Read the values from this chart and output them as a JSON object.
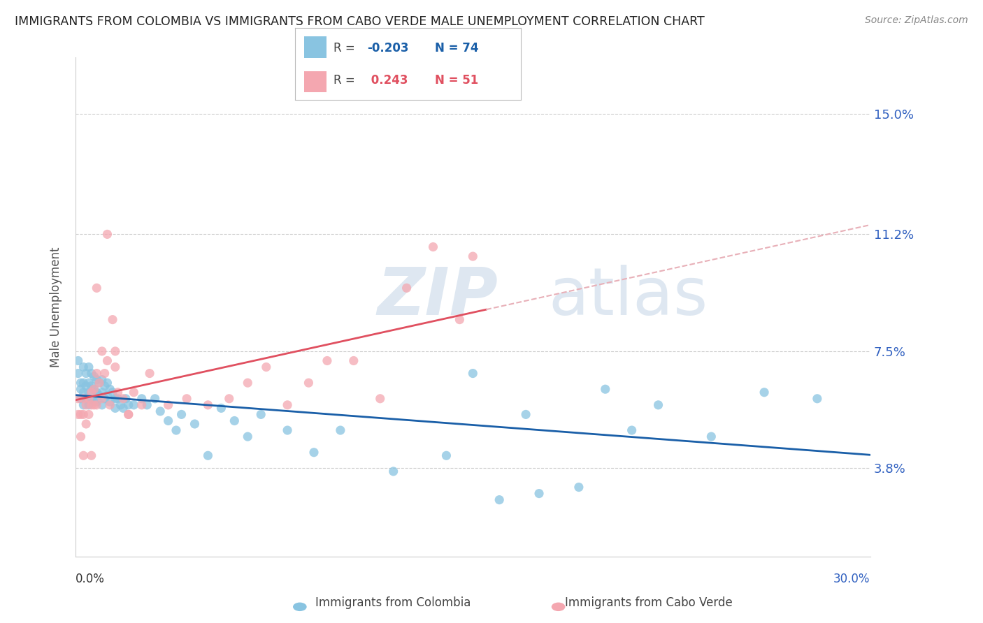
{
  "title": "IMMIGRANTS FROM COLOMBIA VS IMMIGRANTS FROM CABO VERDE MALE UNEMPLOYMENT CORRELATION CHART",
  "source": "Source: ZipAtlas.com",
  "ylabel": "Male Unemployment",
  "ytick_labels": [
    "3.8%",
    "7.5%",
    "11.2%",
    "15.0%"
  ],
  "ytick_values": [
    0.038,
    0.075,
    0.112,
    0.15
  ],
  "xlim": [
    0.0,
    0.3
  ],
  "ylim": [
    0.01,
    0.168
  ],
  "colombia_color": "#89c4e1",
  "caboverde_color": "#f4a7b0",
  "trendline_colombia_color": "#1a5fa8",
  "trendline_caboverde_color": "#e05060",
  "trendline_caboverde_dashed_color": "#e8b0b8",
  "colombia_x": [
    0.001,
    0.001,
    0.002,
    0.002,
    0.002,
    0.003,
    0.003,
    0.003,
    0.003,
    0.004,
    0.004,
    0.004,
    0.005,
    0.005,
    0.005,
    0.005,
    0.006,
    0.006,
    0.006,
    0.007,
    0.007,
    0.007,
    0.008,
    0.008,
    0.008,
    0.009,
    0.009,
    0.01,
    0.01,
    0.01,
    0.011,
    0.011,
    0.012,
    0.012,
    0.013,
    0.013,
    0.014,
    0.015,
    0.015,
    0.016,
    0.017,
    0.018,
    0.019,
    0.02,
    0.022,
    0.025,
    0.027,
    0.03,
    0.032,
    0.035,
    0.038,
    0.04,
    0.045,
    0.05,
    0.055,
    0.06,
    0.065,
    0.07,
    0.08,
    0.09,
    0.1,
    0.12,
    0.14,
    0.16,
    0.175,
    0.19,
    0.21,
    0.24,
    0.26,
    0.28,
    0.15,
    0.17,
    0.2,
    0.22
  ],
  "colombia_y": [
    0.072,
    0.068,
    0.065,
    0.063,
    0.06,
    0.07,
    0.065,
    0.062,
    0.058,
    0.068,
    0.064,
    0.06,
    0.07,
    0.065,
    0.062,
    0.058,
    0.068,
    0.064,
    0.06,
    0.067,
    0.063,
    0.059,
    0.066,
    0.062,
    0.059,
    0.065,
    0.061,
    0.066,
    0.062,
    0.058,
    0.064,
    0.06,
    0.065,
    0.061,
    0.063,
    0.059,
    0.062,
    0.06,
    0.057,
    0.06,
    0.058,
    0.057,
    0.06,
    0.058,
    0.058,
    0.06,
    0.058,
    0.06,
    0.056,
    0.053,
    0.05,
    0.055,
    0.052,
    0.042,
    0.057,
    0.053,
    0.048,
    0.055,
    0.05,
    0.043,
    0.05,
    0.037,
    0.042,
    0.028,
    0.03,
    0.032,
    0.05,
    0.048,
    0.062,
    0.06,
    0.068,
    0.055,
    0.063,
    0.058
  ],
  "caboverde_x": [
    0.001,
    0.001,
    0.002,
    0.002,
    0.003,
    0.003,
    0.003,
    0.004,
    0.004,
    0.005,
    0.005,
    0.006,
    0.006,
    0.006,
    0.007,
    0.007,
    0.008,
    0.008,
    0.009,
    0.01,
    0.01,
    0.011,
    0.012,
    0.013,
    0.014,
    0.015,
    0.016,
    0.018,
    0.02,
    0.022,
    0.025,
    0.028,
    0.035,
    0.042,
    0.05,
    0.058,
    0.065,
    0.072,
    0.08,
    0.088,
    0.095,
    0.105,
    0.115,
    0.125,
    0.135,
    0.145,
    0.15,
    0.008,
    0.012,
    0.015,
    0.02
  ],
  "caboverde_y": [
    0.06,
    0.055,
    0.055,
    0.048,
    0.06,
    0.055,
    0.042,
    0.058,
    0.052,
    0.06,
    0.055,
    0.062,
    0.058,
    0.042,
    0.063,
    0.058,
    0.068,
    0.058,
    0.065,
    0.075,
    0.06,
    0.068,
    0.072,
    0.058,
    0.085,
    0.07,
    0.062,
    0.06,
    0.055,
    0.062,
    0.058,
    0.068,
    0.058,
    0.06,
    0.058,
    0.06,
    0.065,
    0.07,
    0.058,
    0.065,
    0.072,
    0.072,
    0.06,
    0.095,
    0.108,
    0.085,
    0.105,
    0.095,
    0.112,
    0.075,
    0.055
  ],
  "legend_colombia_text": "R = -0.203   N = 74",
  "legend_caboverde_text": "R =  0.243   N = 51",
  "legend_R_colombia": "-0.203",
  "legend_N_colombia": "74",
  "legend_R_caboverde": "0.243",
  "legend_N_caboverde": "51"
}
